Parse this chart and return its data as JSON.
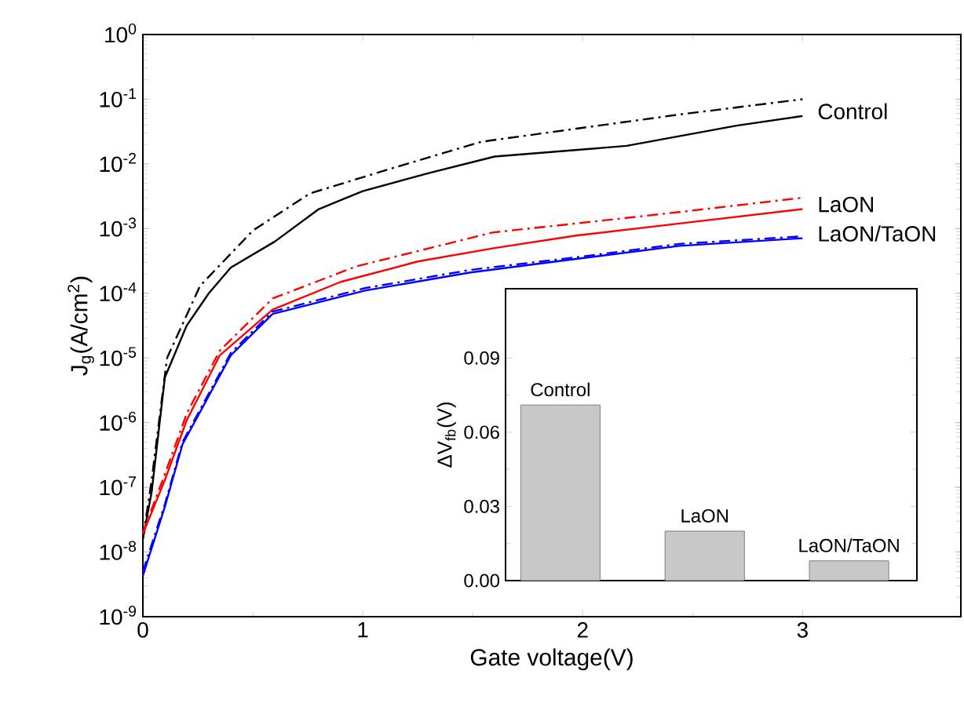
{
  "chart_data": [
    {
      "type": "line",
      "xlabel": "Gate voltage(V)",
      "ylabel": "J$_{g}$(A/cm$^{2}$)",
      "log": "y",
      "grid": false,
      "legend": false,
      "marker": "none",
      "xlim": [
        0,
        3.72
      ],
      "ylim": [
        1e-09,
        1
      ],
      "xticks": [
        0,
        1,
        2,
        3
      ],
      "yticks": [
        {
          "value": 1e-09,
          "label": "10$^{-9}$"
        },
        {
          "value": 1e-08,
          "label": "10$^{-8}$"
        },
        {
          "value": 1e-07,
          "label": "10$^{-7}$"
        },
        {
          "value": 1e-06,
          "label": "10$^{-6}$"
        },
        {
          "value": 1e-05,
          "label": "10$^{-5}$"
        },
        {
          "value": 0.0001,
          "label": "10$^{-4}$"
        },
        {
          "value": 0.001,
          "label": "10$^{-3}$"
        },
        {
          "value": 0.01,
          "label": "10$^{-2}$"
        },
        {
          "value": 0.1,
          "label": "10$^{-1}$"
        },
        {
          "value": 1,
          "label": "10$^{0}$"
        }
      ],
      "series": [
        {
          "name": "Control",
          "color": "#000000",
          "line_style": "solid",
          "x": [
            0,
            0.04,
            0.1,
            0.2,
            0.3,
            0.4,
            0.6,
            0.8,
            1.0,
            1.3,
            1.6,
            2.2,
            2.7,
            3.0
          ],
          "values": [
            1.6e-08,
            8.5e-08,
            5e-06,
            3.2e-05,
            0.0001,
            0.00025,
            0.00063,
            0.002,
            0.0038,
            0.0072,
            0.013,
            0.019,
            0.039,
            0.055
          ]
        },
        {
          "color": "#000000",
          "line_style": "dashed",
          "x": [
            0,
            0.04,
            0.11,
            0.26,
            0.5,
            0.76,
            1.14,
            1.54,
            1.97,
            2.44,
            3.0
          ],
          "values": [
            1.6e-08,
            1.3e-07,
            1e-05,
            0.00013,
            0.00093,
            0.0035,
            0.0087,
            0.022,
            0.035,
            0.058,
            0.1
          ]
        },
        {
          "name": "LaON",
          "color": "#ff0000",
          "line_style": "solid",
          "x": [
            0,
            0.1,
            0.2,
            0.35,
            0.59,
            0.9,
            1.25,
            1.6,
            1.97,
            2.44,
            3.0
          ],
          "values": [
            1.9e-08,
            1.3e-07,
            1.1e-06,
            1.1e-05,
            5.6e-05,
            0.00015,
            0.00031,
            0.0005,
            0.00078,
            0.0012,
            0.002
          ]
        },
        {
          "color": "#ff0000",
          "line_style": "dashed",
          "x": [
            0,
            0.1,
            0.2,
            0.35,
            0.59,
            0.97,
            1.59,
            1.97,
            2.44,
            3.0
          ],
          "values": [
            2e-08,
            1.6e-07,
            1.4e-06,
            1.3e-05,
            8.3e-05,
            0.00026,
            0.00087,
            0.0012,
            0.0018,
            0.003
          ]
        },
        {
          "name": "LaON/TaON",
          "color": "#0000ff",
          "line_style": "solid",
          "x": [
            0,
            0.1,
            0.18,
            0.4,
            0.59,
            1.01,
            1.49,
            1.97,
            2.44,
            3.0
          ],
          "values": [
            4.3e-09,
            5e-08,
            4.6e-07,
            1.1e-05,
            4.8e-05,
            0.00011,
            0.00021,
            0.00034,
            0.00054,
            0.00071
          ]
        },
        {
          "color": "#0000ff",
          "line_style": "dashed",
          "x": [
            0,
            0.1,
            0.18,
            0.4,
            0.59,
            1.01,
            1.49,
            1.97,
            2.44,
            3.0
          ],
          "values": [
            5e-09,
            5.5e-08,
            5e-07,
            1.2e-05,
            5.2e-05,
            0.00012,
            0.00023,
            0.00036,
            0.00058,
            0.00076
          ]
        }
      ]
    },
    {
      "type": "bar",
      "ylabel": "ΔV$_{fb}$(V)",
      "grid": false,
      "legend": false,
      "tick_labels": "y",
      "categories": [
        "Control",
        "LaON",
        "LaON/TaON"
      ],
      "values": [
        0.071,
        0.02,
        0.008
      ],
      "color": "#c8c8c8",
      "ylim": [
        0,
        0.118
      ],
      "yticks": [
        {
          "value": 0,
          "label": "0.00"
        },
        {
          "value": 0.03,
          "label": "0.03"
        },
        {
          "value": 0.06,
          "label": "0.06"
        },
        {
          "value": 0.09,
          "label": "0.09"
        }
      ]
    }
  ]
}
